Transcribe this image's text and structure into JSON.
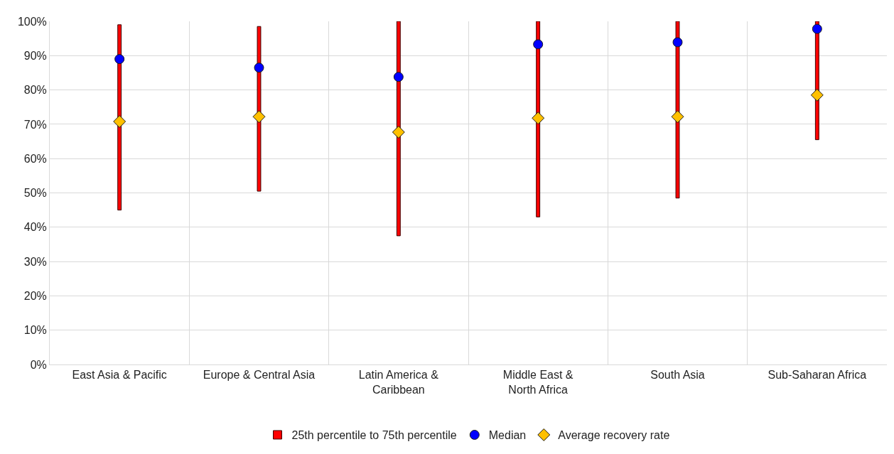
{
  "chart_data": {
    "type": "scatter",
    "categories": [
      "East Asia & Pacific",
      "Europe & Central Asia",
      "Latin America & Caribbean",
      "Middle East & North Africa",
      "South Asia",
      "Sub-Saharan Africa"
    ],
    "series": [
      {
        "name": "25th percentile to 75th percentile",
        "type": "bar",
        "color": "#ff0000",
        "base": [
          45,
          50.5,
          37.5,
          43,
          48.5,
          65.5
        ],
        "values": [
          54,
          48,
          62.5,
          57,
          51.5,
          34.5
        ]
      },
      {
        "name": "Median",
        "marker": "circle",
        "color": "#0000ff",
        "values": [
          89,
          86.5,
          83.8,
          93.3,
          93.9,
          97.8
        ]
      },
      {
        "name": "Average recovery rate",
        "marker": "diamond",
        "color": "#ffc000",
        "values": [
          70.8,
          72.2,
          67.7,
          71.8,
          72.2,
          78.5
        ]
      }
    ],
    "ylim": [
      0,
      100
    ],
    "yticks": [
      {
        "value": 0,
        "label": "0%"
      },
      {
        "value": 10,
        "label": "10%"
      },
      {
        "value": 20,
        "label": "20%"
      },
      {
        "value": 30,
        "label": "30%"
      },
      {
        "value": 40,
        "label": "40%"
      },
      {
        "value": 50,
        "label": "50%"
      },
      {
        "value": 60,
        "label": "60%"
      },
      {
        "value": 70,
        "label": "70%"
      },
      {
        "value": 80,
        "label": "80%"
      },
      {
        "value": 90,
        "label": "90%"
      },
      {
        "value": 100,
        "label": "100%"
      }
    ],
    "grid": true,
    "legend": "bottom"
  }
}
